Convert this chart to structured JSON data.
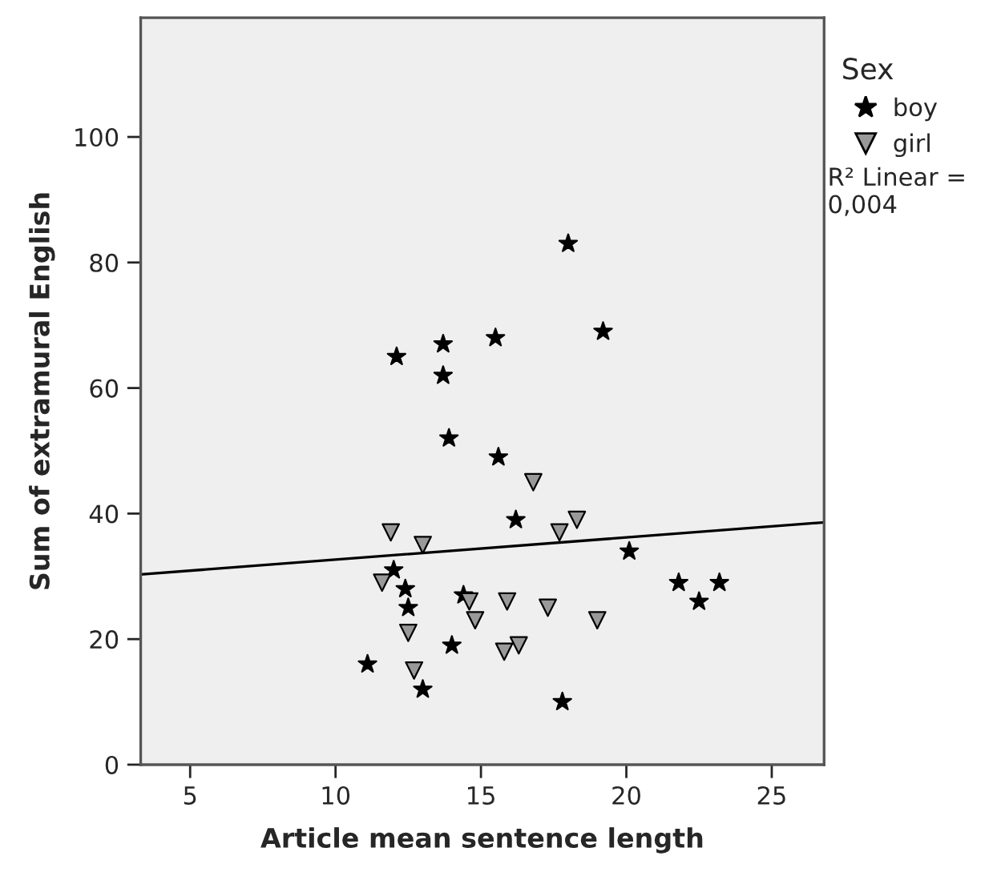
{
  "chart_data": {
    "type": "scatter",
    "xlabel": "Article mean sentence length",
    "ylabel": "Sum of extramural English",
    "legend_title": "Sex",
    "legend": "right",
    "grid": false,
    "xlim": [
      3.3,
      26.8
    ],
    "ylim": [
      0,
      119
    ],
    "xticks": [
      5,
      10,
      15,
      20,
      25
    ],
    "yticks": [
      0,
      20,
      40,
      60,
      80,
      100
    ],
    "annotations": [
      "R² Linear =\n0,004"
    ],
    "series": [
      {
        "name": "boy",
        "color": "#000000",
        "marker": "star",
        "x": [
          18.0,
          19.2,
          12.1,
          13.7,
          15.5,
          13.7,
          13.9,
          15.6,
          16.2,
          20.1,
          12.0,
          12.4,
          12.5,
          14.4,
          14.0,
          11.1,
          13.0,
          17.8,
          21.8,
          22.5,
          23.2
        ],
        "values": [
          83,
          69,
          65,
          67,
          68,
          62,
          52,
          49,
          39,
          34,
          31,
          28,
          25,
          27,
          19,
          16,
          12,
          10,
          29,
          26,
          29
        ]
      },
      {
        "name": "girl",
        "color": "#999999",
        "marker": "triangle",
        "x": [
          16.8,
          11.9,
          13.0,
          18.3,
          17.7,
          11.6,
          12.5,
          14.6,
          14.8,
          15.9,
          17.3,
          19.0,
          15.8,
          16.3,
          12.7
        ],
        "values": [
          45,
          37,
          35,
          39,
          37,
          29,
          21,
          26,
          23,
          26,
          25,
          23,
          18,
          19,
          15
        ]
      },
      {
        "type": "line",
        "color": "#000000",
        "x": [
          3.3,
          26.8
        ],
        "values": [
          30.3,
          38.6
        ]
      }
    ]
  }
}
